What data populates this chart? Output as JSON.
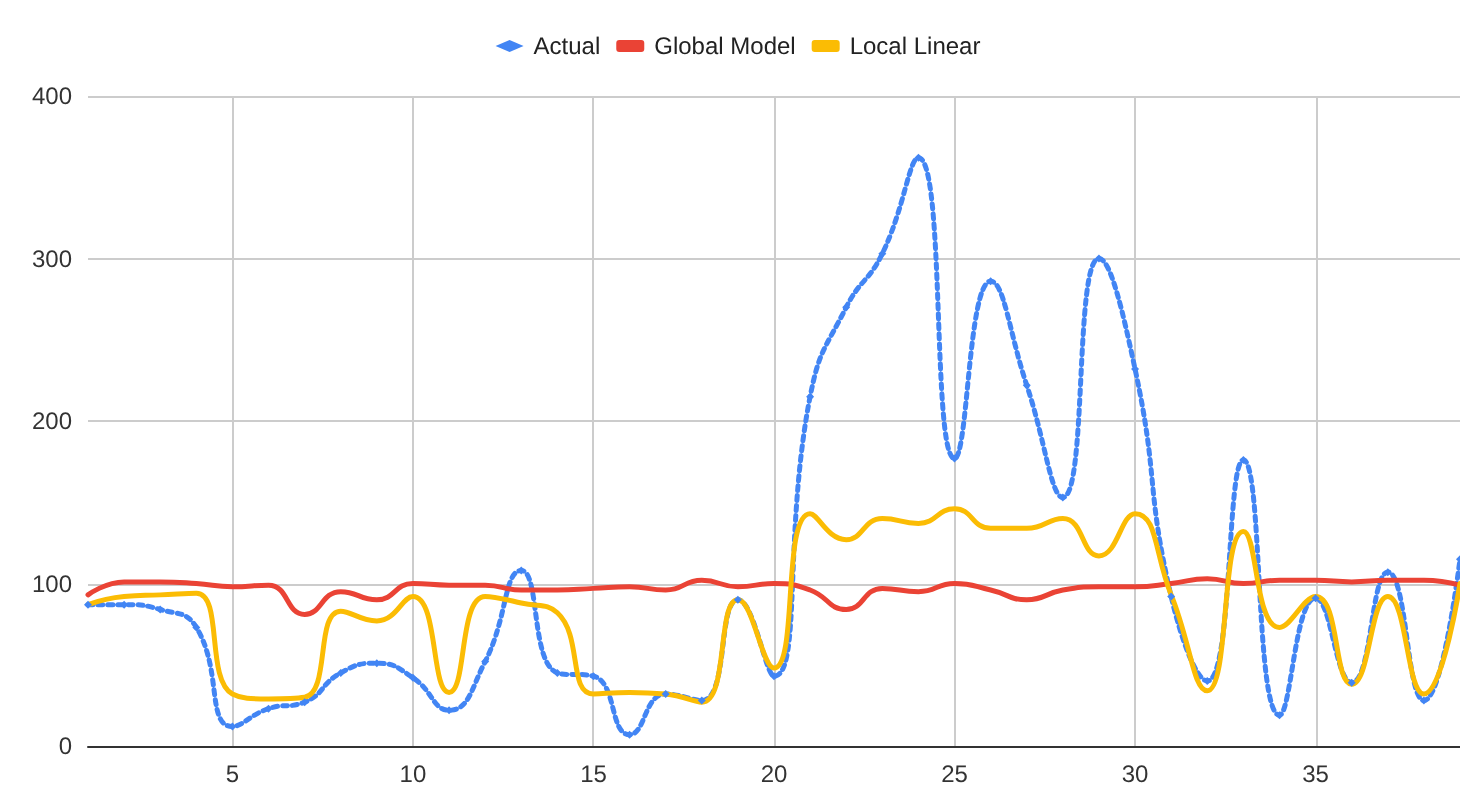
{
  "chart_data": {
    "type": "line",
    "x": [
      1,
      2,
      3,
      4,
      5,
      6,
      7,
      8,
      9,
      10,
      11,
      12,
      13,
      14,
      15,
      16,
      17,
      18,
      19,
      20,
      21,
      22,
      23,
      24,
      25,
      26,
      27,
      28,
      29,
      30,
      31,
      32,
      33,
      34,
      35,
      36,
      37,
      38,
      39
    ],
    "series": [
      {
        "name": "Actual",
        "color": "#4285f4",
        "marker": "diamond",
        "line_style": "dotted",
        "values": [
          87,
          87,
          84,
          73,
          12,
          23,
          27,
          45,
          51,
          42,
          22,
          52,
          108,
          45,
          43,
          7,
          32,
          28,
          90,
          43,
          215,
          270,
          303,
          362,
          177,
          286,
          222,
          153,
          300,
          232,
          92,
          40,
          176,
          19,
          91,
          39,
          107,
          28,
          115
        ]
      },
      {
        "name": "Global Model",
        "color": "#ea4335",
        "marker": "none",
        "line_style": "solid",
        "values": [
          93,
          101,
          101,
          100,
          98,
          99,
          81,
          95,
          90,
          100,
          99,
          99,
          96,
          96,
          97,
          98,
          96,
          102,
          98,
          100,
          96,
          84,
          97,
          95,
          100,
          96,
          90,
          96,
          98,
          98,
          100,
          103,
          100,
          102,
          102,
          101,
          102,
          102,
          99
        ]
      },
      {
        "name": "Local Linear",
        "color": "#fbbc04",
        "marker": "none",
        "line_style": "solid",
        "values": [
          87,
          92,
          93,
          94,
          32,
          29,
          30,
          83,
          77,
          92,
          33,
          92,
          88,
          82,
          32,
          33,
          32,
          27,
          90,
          48,
          143,
          127,
          140,
          137,
          146,
          134,
          134,
          140,
          117,
          143,
          93,
          34,
          132,
          73,
          92,
          38,
          92,
          32,
          100
        ]
      }
    ],
    "xlim": [
      1,
      39
    ],
    "xticks": [
      5,
      10,
      15,
      20,
      25,
      30,
      35
    ],
    "ylim": [
      0,
      400
    ],
    "yticks": [
      0,
      100,
      200,
      300,
      400
    ],
    "grid": true,
    "legend": "top"
  }
}
